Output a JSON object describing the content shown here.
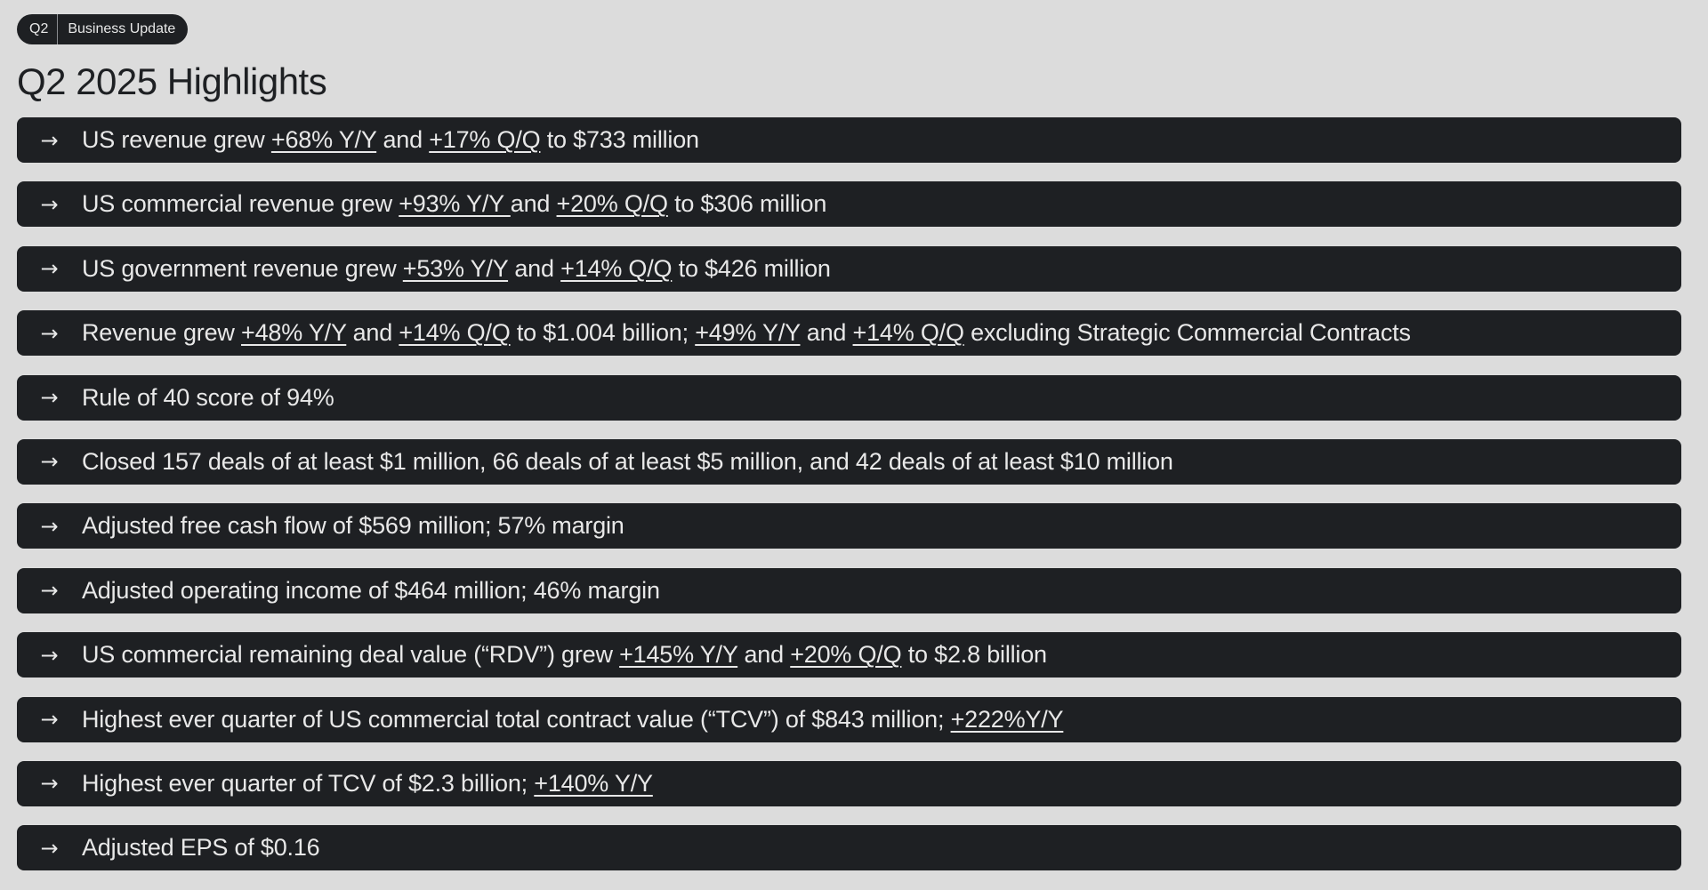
{
  "header": {
    "badge_quarter": "Q2",
    "badge_section": "Business Update",
    "title": "Q2 2025 Highlights"
  },
  "highlights": [
    [
      {
        "t": "US revenue grew "
      },
      {
        "t": "+68% Y/Y",
        "u": true
      },
      {
        "t": " and "
      },
      {
        "t": "+17% Q/Q",
        "u": true
      },
      {
        "t": " to $733 million"
      }
    ],
    [
      {
        "t": "US commercial revenue grew "
      },
      {
        "t": "+93% Y/Y ",
        "u": true
      },
      {
        "t": " and "
      },
      {
        "t": "+20% Q/Q",
        "u": true
      },
      {
        "t": " to $306 million"
      }
    ],
    [
      {
        "t": "US government revenue grew "
      },
      {
        "t": "+53% Y/Y",
        "u": true
      },
      {
        "t": " and "
      },
      {
        "t": "+14% Q/Q",
        "u": true
      },
      {
        "t": " to $426 million"
      }
    ],
    [
      {
        "t": "Revenue grew "
      },
      {
        "t": "+48% Y/Y",
        "u": true
      },
      {
        "t": " and "
      },
      {
        "t": "+14% Q/Q",
        "u": true
      },
      {
        "t": " to $1.004 billion; "
      },
      {
        "t": "+49% Y/Y",
        "u": true
      },
      {
        "t": " and "
      },
      {
        "t": "+14% Q/Q",
        "u": true
      },
      {
        "t": " excluding Strategic Commercial Contracts"
      }
    ],
    [
      {
        "t": "Rule of 40 score of 94%"
      }
    ],
    [
      {
        "t": "Closed 157 deals of at least $1 million, 66 deals of at least $5 million, and 42 deals of at least $10 million"
      }
    ],
    [
      {
        "t": "Adjusted free cash flow of $569 million; 57% margin"
      }
    ],
    [
      {
        "t": "Adjusted operating income of $464 million; 46% margin"
      }
    ],
    [
      {
        "t": "US commercial remaining deal value (“RDV”) grew "
      },
      {
        "t": "+145% Y/Y",
        "u": true
      },
      {
        "t": " and "
      },
      {
        "t": "+20% Q/Q",
        "u": true
      },
      {
        "t": " to $2.8 billion"
      }
    ],
    [
      {
        "t": "Highest ever quarter of US commercial total contract value (“TCV”) of $843 million; "
      },
      {
        "t": "+222%Y/Y",
        "u": true
      }
    ],
    [
      {
        "t": "Highest ever quarter of TCV of $2.3 billion; "
      },
      {
        "t": "+140% Y/Y",
        "u": true
      }
    ],
    [
      {
        "t": "Adjusted EPS of $0.16"
      }
    ]
  ],
  "icons": {
    "bullet": "arrow-right-icon",
    "bullet_glyph": "→"
  },
  "colors": {
    "background": "#dcdcdc",
    "row_background": "#1e2023",
    "row_text": "#e8e8e8"
  }
}
